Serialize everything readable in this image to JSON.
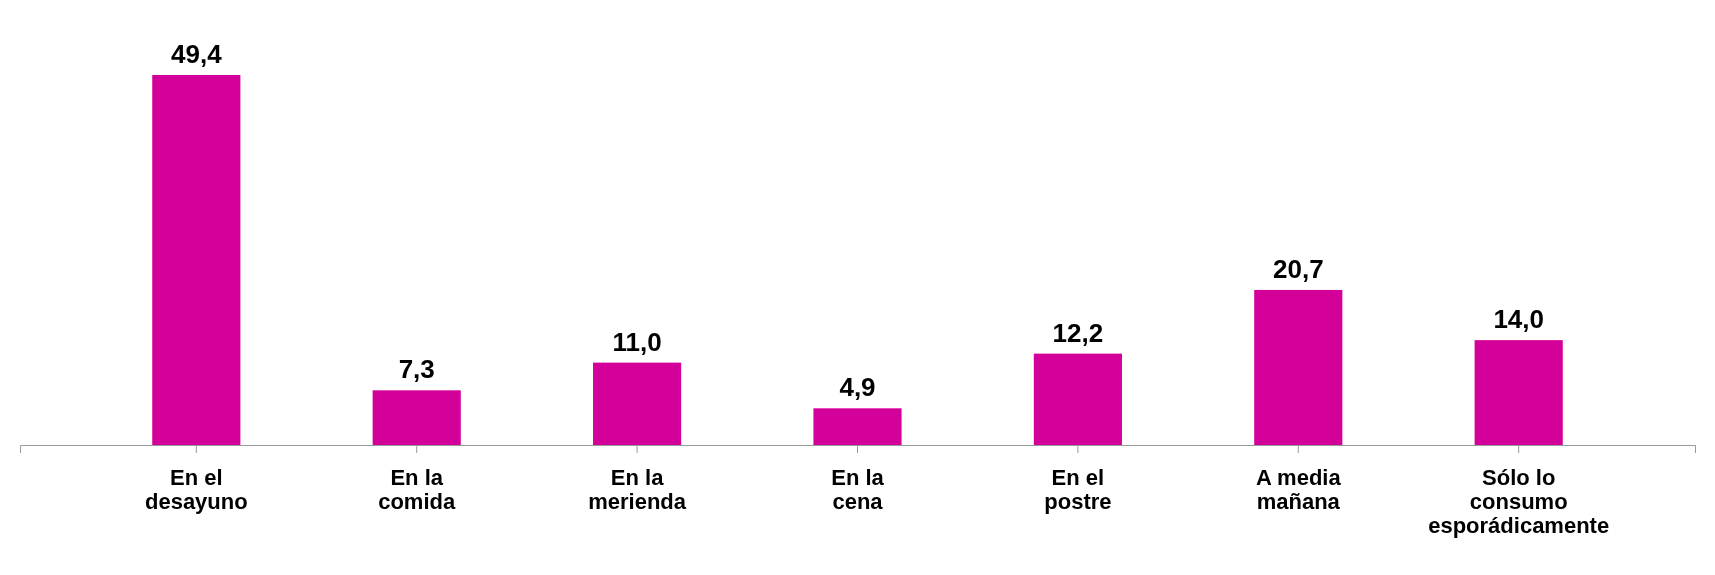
{
  "chart_data": {
    "type": "bar",
    "categories": [
      "En el desayuno",
      "En la comida",
      "En la merienda",
      "En la cena",
      "En el postre",
      "A media mañana",
      "Sólo lo consumo esporádicamente"
    ],
    "values": [
      49.4,
      7.3,
      11.0,
      4.9,
      12.2,
      20.7,
      14.0
    ],
    "value_labels": [
      "49,4",
      "7,3",
      "11,0",
      "4,9",
      "12,2",
      "20,7",
      "14,0"
    ],
    "color": "#d4009a"
  }
}
